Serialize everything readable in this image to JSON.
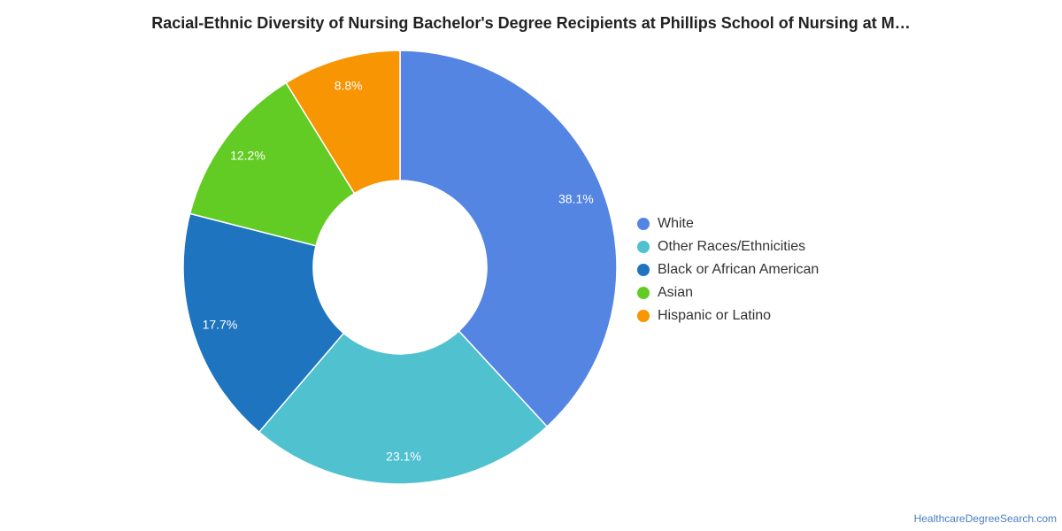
{
  "chart_data": {
    "type": "pie",
    "variant": "donut",
    "title": "Racial-Ethnic Diversity of Nursing Bachelor's Degree Recipients at Phillips School of Nursing at M…",
    "slices": [
      {
        "name": "White",
        "value": 38.1,
        "label": "38.1%",
        "color": "#5485e3"
      },
      {
        "name": "Other Races/Ethnicities",
        "value": 23.1,
        "label": "23.1%",
        "color": "#4fc1cf"
      },
      {
        "name": "Black or African American",
        "value": 17.7,
        "label": "17.7%",
        "color": "#1f74bf"
      },
      {
        "name": "Asian",
        "value": 12.2,
        "label": "12.2%",
        "color": "#62cc24"
      },
      {
        "name": "Hispanic or Latino",
        "value": 8.8,
        "label": "8.8%",
        "color": "#f79503"
      }
    ],
    "legend_position": "right"
  },
  "source": "HealthcareDegreeSearch.com"
}
